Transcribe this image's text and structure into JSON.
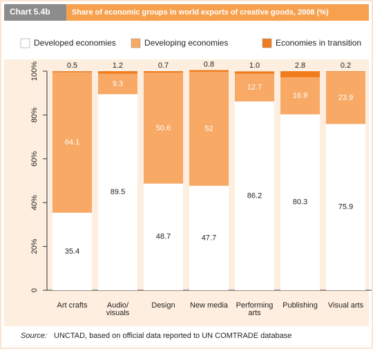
{
  "chart_data": {
    "type": "stacked_bar",
    "chart_label": "Chart 5.4b",
    "title": "Share of economic groups in world exports of creative goods, 2008 (%)",
    "categories": [
      "Art crafts",
      "Audio/\nvisuals",
      "Design",
      "New media",
      "Performing\narts",
      "Publishing",
      "Visual arts"
    ],
    "series": [
      {
        "name": "Developed economies",
        "color": "#ffffff",
        "values": [
          35.4,
          89.5,
          48.7,
          47.7,
          86.2,
          80.3,
          75.9
        ]
      },
      {
        "name": "Developing economies",
        "color": "#f7a965",
        "values": [
          64.1,
          9.3,
          50.6,
          52,
          12.7,
          16.9,
          23.9
        ]
      },
      {
        "name": "Economies in transition",
        "color": "#f07c1c",
        "values": [
          0.5,
          1.2,
          0.7,
          0.8,
          1.0,
          2.8,
          0.2
        ],
        "value_labels": [
          "0.5",
          "1.2",
          "0.7",
          "0.8",
          "1.0",
          "2.8",
          "0.2"
        ]
      }
    ],
    "ylim": [
      0,
      100
    ],
    "yticks": [
      0,
      {
        "value": 20,
        "label": "20%"
      },
      {
        "value": 40,
        "label": "40%"
      },
      {
        "value": 60,
        "label": "60%"
      },
      {
        "value": 80,
        "label": "80%"
      },
      {
        "value": 100,
        "label": "100%"
      }
    ],
    "legend": "top",
    "source_label": "Source:",
    "source": "UNCTAD, based on official data reported to UN COMTRADE database"
  }
}
